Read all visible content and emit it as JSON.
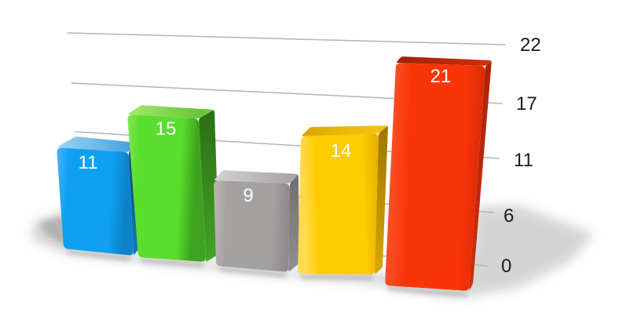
{
  "chart_data": {
    "type": "bar",
    "style": "3d-perspective",
    "title": "",
    "background": "#ffffff",
    "gridlines": true,
    "gridline_color": "#b5b5b5",
    "value_label_color": "#ffffff",
    "shadow_color": "#ababab",
    "series": [
      {
        "name": "blue",
        "value": 11,
        "label": "11",
        "color": {
          "front": "#10a0f2",
          "front_light": "#4ab5f5",
          "front_dark": "#0d82ca",
          "top": [
            "#9bd4f3",
            "#46a5e0"
          ],
          "side": [
            "#0b3e5f",
            "#1277b2"
          ]
        }
      },
      {
        "name": "green",
        "value": 15,
        "label": "15",
        "color": {
          "front": "#5ade2d",
          "front_light": "#84e854",
          "front_dark": "#3da21d",
          "top": [
            "#a6e96f",
            "#67c636"
          ],
          "side": [
            "#2c6e13",
            "#42a126"
          ]
        }
      },
      {
        "name": "gray",
        "value": 9,
        "label": "9",
        "color": {
          "front": "#a4a1a1",
          "front_light": "#bab7b7",
          "front_dark": "#8d8a8a",
          "top": [
            "#d5d2d2",
            "#a9a6a6"
          ],
          "side": [
            "#716e6e",
            "#8f8c8c"
          ]
        }
      },
      {
        "name": "yellow",
        "value": 14,
        "label": "14",
        "color": {
          "front": "#ffcb01",
          "front_light": "#ffdb4d",
          "front_dark": "#e3ae00",
          "top": [
            "#d8a700",
            "#f3c413"
          ],
          "side": [
            "#9c7600",
            "#d6a500"
          ]
        }
      },
      {
        "name": "red",
        "value": 21,
        "label": "21",
        "color": {
          "front": "#f93508",
          "front_light": "#fb4d22",
          "front_dark": "#da2b06",
          "top": [
            "#9e2206",
            "#d12e0a"
          ],
          "side": [
            "#aa2407",
            "#cf2d0a"
          ]
        }
      }
    ],
    "y_axis": {
      "side": "right",
      "range": [
        0,
        22
      ],
      "tick_labels": [
        "22",
        "17",
        "11",
        "6",
        "0"
      ],
      "tick_label_color": "#1b1b1b"
    },
    "x_axis": {
      "tick_labels": []
    }
  }
}
